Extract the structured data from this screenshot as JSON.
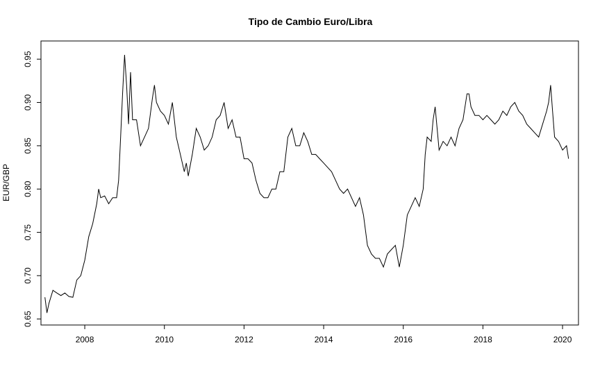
{
  "chart_data": {
    "type": "line",
    "title": "Tipo de Cambio Euro/Libra",
    "xlabel": "",
    "ylabel": "EUR/GBP",
    "xlim": [
      2006.9,
      2020.4
    ],
    "ylim": [
      0.643,
      0.971
    ],
    "x_ticks": [
      2008,
      2010,
      2012,
      2014,
      2016,
      2018,
      2020
    ],
    "x_tick_labels": [
      "2008",
      "2010",
      "2012",
      "2014",
      "2016",
      "2018",
      "2020"
    ],
    "y_ticks": [
      0.65,
      0.7,
      0.75,
      0.8,
      0.85,
      0.9,
      0.95
    ],
    "y_tick_labels": [
      "0.65",
      "0.70",
      "0.75",
      "0.80",
      "0.85",
      "0.90",
      "0.95"
    ],
    "grid": false,
    "legend": "none",
    "series": [
      {
        "color": "#000000",
        "x": [
          2007.0,
          2007.05,
          2007.1,
          2007.2,
          2007.3,
          2007.4,
          2007.5,
          2007.6,
          2007.7,
          2007.8,
          2007.9,
          2008.0,
          2008.1,
          2008.2,
          2008.3,
          2008.35,
          2008.4,
          2008.5,
          2008.6,
          2008.7,
          2008.8,
          2008.85,
          2008.9,
          2008.95,
          2009.0,
          2009.05,
          2009.1,
          2009.15,
          2009.2,
          2009.3,
          2009.4,
          2009.5,
          2009.6,
          2009.7,
          2009.75,
          2009.8,
          2009.9,
          2010.0,
          2010.1,
          2010.2,
          2010.3,
          2010.4,
          2010.5,
          2010.55,
          2010.6,
          2010.7,
          2010.8,
          2010.9,
          2011.0,
          2011.1,
          2011.2,
          2011.3,
          2011.4,
          2011.5,
          2011.6,
          2011.7,
          2011.8,
          2011.9,
          2012.0,
          2012.1,
          2012.2,
          2012.3,
          2012.4,
          2012.5,
          2012.6,
          2012.7,
          2012.8,
          2012.9,
          2013.0,
          2013.1,
          2013.2,
          2013.3,
          2013.4,
          2013.5,
          2013.6,
          2013.7,
          2013.8,
          2013.9,
          2014.0,
          2014.1,
          2014.2,
          2014.3,
          2014.4,
          2014.5,
          2014.6,
          2014.7,
          2014.8,
          2014.9,
          2015.0,
          2015.1,
          2015.2,
          2015.3,
          2015.4,
          2015.5,
          2015.6,
          2015.7,
          2015.8,
          2015.9,
          2016.0,
          2016.1,
          2016.2,
          2016.3,
          2016.4,
          2016.5,
          2016.55,
          2016.6,
          2016.7,
          2016.75,
          2016.8,
          2016.9,
          2017.0,
          2017.1,
          2017.2,
          2017.3,
          2017.4,
          2017.5,
          2017.6,
          2017.65,
          2017.7,
          2017.8,
          2017.9,
          2018.0,
          2018.1,
          2018.2,
          2018.3,
          2018.4,
          2018.5,
          2018.6,
          2018.7,
          2018.8,
          2018.9,
          2019.0,
          2019.1,
          2019.2,
          2019.3,
          2019.4,
          2019.5,
          2019.6,
          2019.65,
          2019.7,
          2019.75,
          2019.8,
          2019.9,
          2020.0,
          2020.1,
          2020.15
        ],
        "y": [
          0.675,
          0.657,
          0.668,
          0.683,
          0.68,
          0.677,
          0.68,
          0.676,
          0.675,
          0.695,
          0.7,
          0.718,
          0.745,
          0.76,
          0.783,
          0.8,
          0.79,
          0.792,
          0.783,
          0.79,
          0.79,
          0.81,
          0.86,
          0.91,
          0.955,
          0.92,
          0.875,
          0.935,
          0.88,
          0.88,
          0.85,
          0.86,
          0.87,
          0.905,
          0.92,
          0.9,
          0.89,
          0.885,
          0.875,
          0.9,
          0.86,
          0.84,
          0.82,
          0.83,
          0.815,
          0.84,
          0.87,
          0.86,
          0.845,
          0.85,
          0.86,
          0.88,
          0.885,
          0.9,
          0.87,
          0.88,
          0.86,
          0.86,
          0.835,
          0.835,
          0.83,
          0.81,
          0.795,
          0.79,
          0.79,
          0.8,
          0.8,
          0.82,
          0.82,
          0.86,
          0.87,
          0.85,
          0.85,
          0.865,
          0.855,
          0.84,
          0.84,
          0.835,
          0.83,
          0.825,
          0.82,
          0.81,
          0.8,
          0.795,
          0.8,
          0.79,
          0.78,
          0.79,
          0.77,
          0.735,
          0.725,
          0.72,
          0.72,
          0.71,
          0.725,
          0.73,
          0.735,
          0.71,
          0.735,
          0.77,
          0.78,
          0.79,
          0.78,
          0.8,
          0.84,
          0.86,
          0.855,
          0.88,
          0.895,
          0.845,
          0.855,
          0.85,
          0.86,
          0.85,
          0.87,
          0.88,
          0.91,
          0.91,
          0.895,
          0.885,
          0.885,
          0.88,
          0.885,
          0.88,
          0.875,
          0.88,
          0.89,
          0.885,
          0.895,
          0.9,
          0.89,
          0.885,
          0.875,
          0.87,
          0.865,
          0.86,
          0.875,
          0.89,
          0.9,
          0.92,
          0.89,
          0.86,
          0.855,
          0.845,
          0.85,
          0.835
        ]
      }
    ]
  }
}
